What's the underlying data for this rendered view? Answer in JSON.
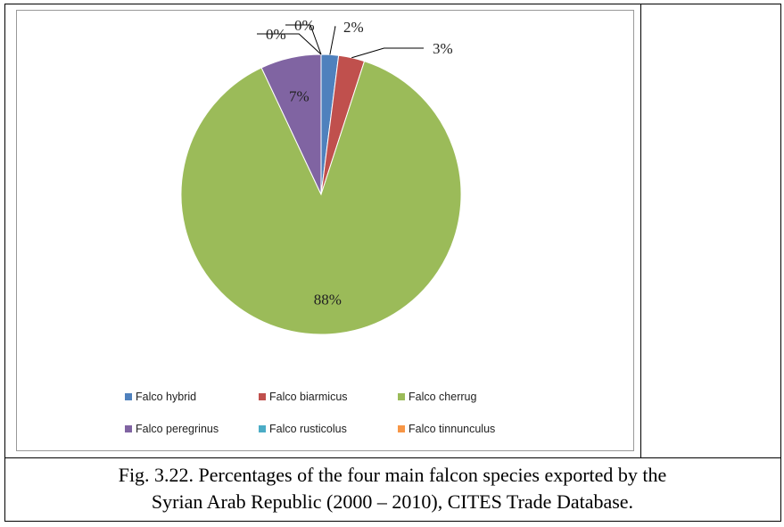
{
  "chart_data": {
    "type": "pie",
    "categories": [
      "Falco hybrid",
      "Falco biarmicus",
      "Falco cherrug",
      "Falco peregrinus",
      "Falco rusticolus",
      "Falco tinnunculus"
    ],
    "values": [
      2,
      3,
      88,
      7,
      0,
      0
    ],
    "value_labels": [
      "2%",
      "3%",
      "88%",
      "7%",
      "0%",
      "0%"
    ],
    "colors": [
      "#4f81bd",
      "#c0504d",
      "#9bbb59",
      "#8064a2",
      "#4bacc6",
      "#f79646"
    ],
    "legend": "bottom"
  },
  "caption": [
    "Fig. 3.22. Percentages of the four main falcon species exported  by the",
    "Syrian Arab Republic (2000 – 2010), CITES Trade Database."
  ]
}
